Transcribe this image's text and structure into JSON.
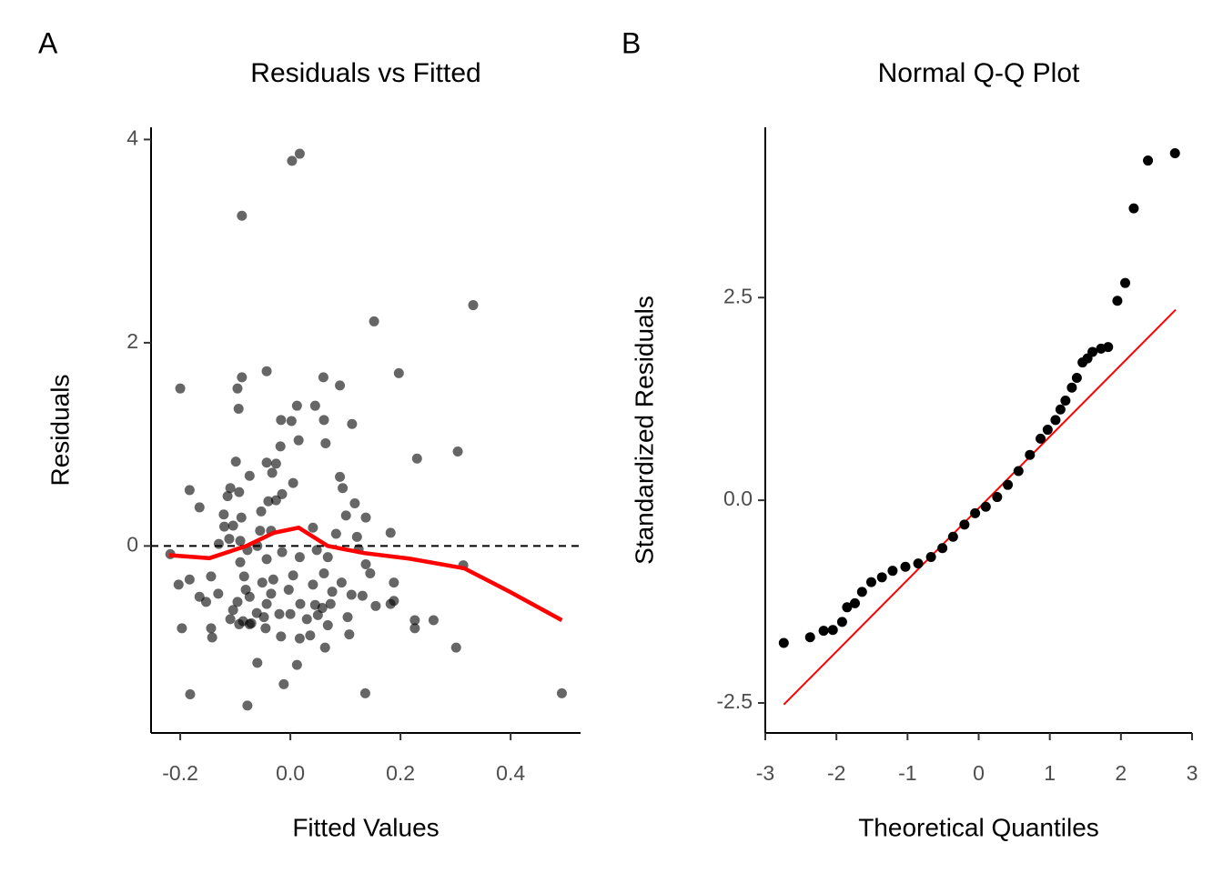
{
  "chart_data": [
    {
      "type": "scatter",
      "panel_label": "A",
      "title": "Residuals vs Fitted",
      "x_label": "Fitted Values",
      "y_label": "Residuals",
      "xlim": [
        -0.253,
        0.527
      ],
      "ylim": [
        -1.84,
        4.12
      ],
      "xticks": [
        -0.2,
        {
          "value": 0,
          "label": "0.0"
        },
        0.2,
        0.4
      ],
      "yticks": [
        0,
        2,
        4
      ],
      "hline": 0,
      "series": [
        {
          "color": "#000000",
          "opacity": 0.6,
          "x": [
            -0.2,
            0.017,
            0.003,
            -0.088,
            0.332,
            0.152,
            -0.043,
            -0.088,
            0.197,
            0.06,
            0.09,
            -0.096,
            0.012,
            0.045,
            -0.094,
            -0.017,
            0.002,
            0.061,
            0.112,
            -0.018,
            0.015,
            0.064,
            0.304,
            0.23,
            -0.099,
            -0.043,
            -0.026,
            -0.033,
            -0.074,
            0.09,
            0.005,
            -0.109,
            0.095,
            -0.183,
            -0.093,
            -0.114,
            -0.015,
            -0.026,
            -0.04,
            -0.165,
            0.117,
            -0.053,
            -0.121,
            -0.089,
            0.101,
            0.137,
            -0.12,
            -0.104,
            -0.055,
            -0.035,
            0.041,
            0.083,
            0.182,
            0.121,
            -0.111,
            -0.091,
            -0.218,
            -0.13,
            -0.078,
            -0.015,
            -0.06,
            0.048,
            0.124,
            0.017,
            0.068,
            0.137,
            0.314,
            -0.043,
            -0.091,
            0.005,
            0.061,
            0.145,
            -0.144,
            -0.183,
            -0.203,
            -0.084,
            -0.051,
            -0.031,
            0.093,
            0.188,
            0.041,
            -0.081,
            -0.131,
            -0.074,
            -0.035,
            -0.003,
            0.076,
            0.111,
            -0.165,
            0.131,
            0.018,
            0.045,
            0.058,
            0.073,
            -0.096,
            -0.043,
            -0.153,
            0.155,
            0.182,
            0.188,
            -0.104,
            -0.061,
            -0.02,
            0.0,
            0.05,
            0.03,
            -0.109,
            -0.086,
            -0.048,
            0.104,
            0.226,
            0.26,
            0.226,
            -0.197,
            -0.144,
            -0.093,
            -0.071,
            -0.074,
            -0.045,
            0.068,
            -0.142,
            -0.017,
            0.017,
            0.036,
            0.107,
            0.063,
            0.301,
            -0.06,
            0.012,
            -0.012,
            -0.182,
            0.136,
            0.493,
            -0.078
          ],
          "values": [
            1.55,
            3.86,
            3.79,
            3.25,
            2.37,
            2.21,
            1.72,
            1.66,
            1.7,
            1.66,
            1.58,
            1.55,
            1.38,
            1.38,
            1.35,
            1.24,
            1.23,
            1.24,
            1.2,
            0.98,
            1.04,
            1.01,
            0.93,
            0.86,
            0.83,
            0.82,
            0.81,
            0.72,
            0.69,
            0.68,
            0.62,
            0.57,
            0.57,
            0.55,
            0.53,
            0.49,
            0.51,
            0.45,
            0.44,
            0.38,
            0.42,
            0.34,
            0.31,
            0.28,
            0.3,
            0.28,
            0.19,
            0.2,
            0.15,
            0.15,
            0.18,
            0.12,
            0.13,
            0.09,
            0.07,
            0.05,
            -0.08,
            0.02,
            -0.04,
            -0.06,
            0.0,
            -0.04,
            -0.03,
            -0.11,
            -0.11,
            -0.18,
            -0.19,
            -0.13,
            -0.16,
            -0.29,
            -0.27,
            -0.27,
            -0.3,
            -0.33,
            -0.38,
            -0.3,
            -0.36,
            -0.33,
            -0.36,
            -0.36,
            -0.38,
            -0.43,
            -0.47,
            -0.5,
            -0.47,
            -0.43,
            -0.45,
            -0.48,
            -0.5,
            -0.49,
            -0.57,
            -0.58,
            -0.61,
            -0.57,
            -0.55,
            -0.57,
            -0.55,
            -0.59,
            -0.57,
            -0.54,
            -0.63,
            -0.66,
            -0.67,
            -0.67,
            -0.68,
            -0.72,
            -0.72,
            -0.74,
            -0.7,
            -0.7,
            -0.73,
            -0.73,
            -0.81,
            -0.81,
            -0.81,
            -0.77,
            -0.76,
            -0.77,
            -0.81,
            -0.78,
            -0.9,
            -0.89,
            -0.91,
            -0.88,
            -0.87,
            -1.0,
            -1.0,
            -1.15,
            -1.17,
            -1.36,
            -1.46,
            -1.45,
            -1.45,
            -1.57
          ]
        }
      ],
      "smooth": {
        "color": "#ff0000",
        "x": [
          -0.22,
          -0.147,
          -0.08,
          -0.03,
          0.015,
          0.068,
          0.134,
          0.217,
          0.316,
          0.398,
          0.493
        ],
        "y": [
          -0.09,
          -0.12,
          0.0,
          0.13,
          0.18,
          0.0,
          -0.07,
          -0.125,
          -0.22,
          -0.45,
          -0.73
        ]
      }
    },
    {
      "type": "scatter",
      "panel_label": "B",
      "title": "Normal Q-Q Plot",
      "x_label": "Theoretical Quantiles",
      "y_label": "Standardized Residuals",
      "xlim": [
        -3.0,
        3.0
      ],
      "ylim": [
        -2.87,
        4.6
      ],
      "xticks": [
        -3,
        -2,
        -1,
        0,
        1,
        2,
        3
      ],
      "yticks": [
        -2.5,
        {
          "value": 0,
          "label": "0.0"
        },
        2.5
      ],
      "series": [
        {
          "color": "#000000",
          "opacity": 1,
          "x": [
            -2.74,
            -2.37,
            -2.18,
            -2.05,
            -1.92,
            -1.85,
            -1.74,
            -1.64,
            -1.51,
            -1.36,
            -1.21,
            -1.03,
            -0.85,
            -0.67,
            -0.51,
            -0.36,
            -0.2,
            -0.05,
            0.1,
            0.26,
            0.41,
            0.56,
            0.72,
            0.87,
            0.97,
            1.08,
            1.15,
            1.22,
            1.31,
            1.38,
            1.46,
            1.53,
            1.6,
            1.72,
            1.82,
            1.95,
            2.06,
            2.18,
            2.38,
            2.76
          ],
          "values": [
            -1.76,
            -1.69,
            -1.61,
            -1.6,
            -1.5,
            -1.32,
            -1.27,
            -1.13,
            -1.01,
            -0.95,
            -0.87,
            -0.82,
            -0.78,
            -0.7,
            -0.59,
            -0.45,
            -0.3,
            -0.16,
            -0.08,
            0.04,
            0.19,
            0.36,
            0.56,
            0.76,
            0.87,
            0.99,
            1.12,
            1.23,
            1.39,
            1.51,
            1.7,
            1.75,
            1.83,
            1.87,
            1.89,
            2.46,
            2.68,
            3.6,
            4.19,
            4.28
          ]
        }
      ],
      "ref_line": {
        "color": "#ff0000",
        "x": [
          -2.74,
          2.77
        ],
        "y": [
          -2.52,
          2.35
        ]
      }
    }
  ]
}
